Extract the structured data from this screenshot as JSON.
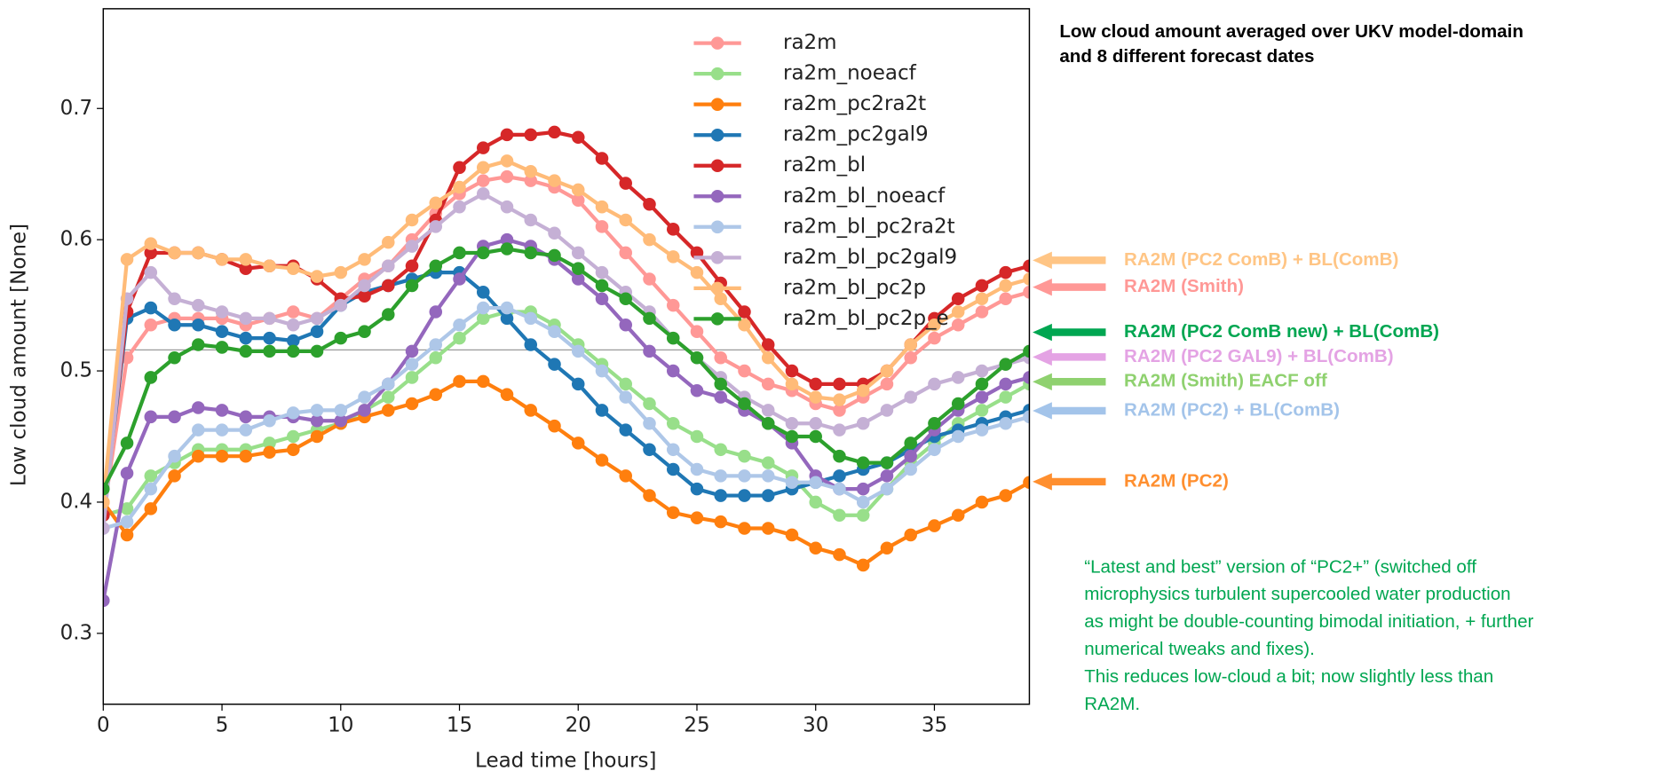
{
  "chart_data": {
    "type": "line",
    "title_lines": [
      "Low cloud amount averaged over UKV model-domain",
      "and 8 different forecast dates"
    ],
    "x_label": "Lead time [hours]",
    "y_label": "Low cloud amount [None]",
    "x": [
      0,
      1,
      2,
      3,
      4,
      5,
      6,
      7,
      8,
      9,
      10,
      11,
      12,
      13,
      14,
      15,
      16,
      17,
      18,
      19,
      20,
      21,
      22,
      23,
      24,
      25,
      26,
      27,
      28,
      29,
      30,
      31,
      32,
      33,
      34,
      35,
      36,
      37,
      38,
      39
    ],
    "xlim": [
      0,
      39
    ],
    "xticks": [
      0,
      5,
      10,
      15,
      20,
      25,
      30,
      35
    ],
    "ylim": [
      0.246,
      0.776
    ],
    "yticks": [
      0.3,
      0.4,
      0.5,
      0.6,
      0.7
    ],
    "reference_line": 0.516,
    "legend_position": "upper center",
    "series": [
      {
        "name": "ra2m",
        "color": "#ff9896",
        "values": [
          0.39,
          0.51,
          0.535,
          0.54,
          0.54,
          0.54,
          0.535,
          0.54,
          0.545,
          0.54,
          0.555,
          0.57,
          0.58,
          0.6,
          0.62,
          0.635,
          0.645,
          0.648,
          0.645,
          0.64,
          0.63,
          0.61,
          0.59,
          0.57,
          0.55,
          0.53,
          0.51,
          0.5,
          0.49,
          0.485,
          0.475,
          0.47,
          0.48,
          0.49,
          0.51,
          0.525,
          0.535,
          0.545,
          0.555,
          0.56
        ]
      },
      {
        "name": "ra2m_noeacf",
        "color": "#98df8a",
        "values": [
          0.39,
          0.395,
          0.42,
          0.43,
          0.44,
          0.44,
          0.44,
          0.445,
          0.45,
          0.455,
          0.46,
          0.47,
          0.48,
          0.495,
          0.51,
          0.525,
          0.54,
          0.545,
          0.545,
          0.535,
          0.52,
          0.505,
          0.49,
          0.475,
          0.46,
          0.45,
          0.44,
          0.435,
          0.43,
          0.42,
          0.4,
          0.39,
          0.39,
          0.41,
          0.43,
          0.445,
          0.46,
          0.47,
          0.48,
          0.49
        ]
      },
      {
        "name": "ra2m_pc2ra2t",
        "color": "#ff7f0e",
        "values": [
          0.4,
          0.375,
          0.395,
          0.42,
          0.435,
          0.435,
          0.435,
          0.438,
          0.44,
          0.45,
          0.46,
          0.465,
          0.47,
          0.475,
          0.482,
          0.492,
          0.492,
          0.482,
          0.47,
          0.458,
          0.445,
          0.432,
          0.42,
          0.405,
          0.392,
          0.388,
          0.385,
          0.38,
          0.38,
          0.375,
          0.365,
          0.36,
          0.352,
          0.365,
          0.375,
          0.382,
          0.39,
          0.4,
          0.405,
          0.415
        ]
      },
      {
        "name": "ra2m_pc2gal9",
        "color": "#1f77b4",
        "values": [
          0.39,
          0.54,
          0.548,
          0.535,
          0.535,
          0.53,
          0.525,
          0.525,
          0.523,
          0.53,
          0.55,
          0.56,
          0.565,
          0.57,
          0.575,
          0.575,
          0.56,
          0.54,
          0.52,
          0.505,
          0.49,
          0.47,
          0.455,
          0.44,
          0.425,
          0.41,
          0.405,
          0.405,
          0.405,
          0.41,
          0.415,
          0.42,
          0.425,
          0.43,
          0.44,
          0.45,
          0.455,
          0.46,
          0.465,
          0.47
        ]
      },
      {
        "name": "ra2m_bl",
        "color": "#d62728",
        "values": [
          0.39,
          0.545,
          0.59,
          0.59,
          0.59,
          0.585,
          0.578,
          0.58,
          0.58,
          0.57,
          0.555,
          0.557,
          0.565,
          0.58,
          0.615,
          0.655,
          0.67,
          0.68,
          0.68,
          0.682,
          0.678,
          0.662,
          0.643,
          0.627,
          0.608,
          0.59,
          0.567,
          0.545,
          0.52,
          0.5,
          0.49,
          0.49,
          0.49,
          0.5,
          0.52,
          0.54,
          0.555,
          0.565,
          0.575,
          0.58
        ]
      },
      {
        "name": "ra2m_bl_noeacf",
        "color": "#9467bd",
        "values": [
          0.325,
          0.422,
          0.465,
          0.465,
          0.472,
          0.47,
          0.465,
          0.465,
          0.465,
          0.462,
          0.462,
          0.47,
          0.49,
          0.515,
          0.545,
          0.57,
          0.595,
          0.6,
          0.595,
          0.585,
          0.57,
          0.555,
          0.535,
          0.515,
          0.5,
          0.485,
          0.48,
          0.47,
          0.46,
          0.445,
          0.42,
          0.41,
          0.41,
          0.42,
          0.435,
          0.455,
          0.47,
          0.48,
          0.49,
          0.495
        ]
      },
      {
        "name": "ra2m_bl_pc2ra2t",
        "color": "#aec7e8",
        "values": [
          0.38,
          0.385,
          0.41,
          0.435,
          0.455,
          0.455,
          0.455,
          0.462,
          0.468,
          0.47,
          0.47,
          0.48,
          0.49,
          0.505,
          0.52,
          0.535,
          0.548,
          0.548,
          0.54,
          0.53,
          0.515,
          0.5,
          0.48,
          0.46,
          0.44,
          0.425,
          0.42,
          0.42,
          0.42,
          0.415,
          0.415,
          0.41,
          0.4,
          0.41,
          0.425,
          0.44,
          0.45,
          0.455,
          0.46,
          0.465
        ]
      },
      {
        "name": "ra2m_bl_pc2gal9",
        "color": "#c5b0d5",
        "values": [
          0.38,
          0.555,
          0.575,
          0.555,
          0.55,
          0.545,
          0.54,
          0.54,
          0.535,
          0.54,
          0.55,
          0.565,
          0.58,
          0.595,
          0.61,
          0.625,
          0.635,
          0.625,
          0.615,
          0.605,
          0.59,
          0.575,
          0.56,
          0.545,
          0.525,
          0.51,
          0.495,
          0.48,
          0.47,
          0.46,
          0.46,
          0.455,
          0.46,
          0.47,
          0.48,
          0.49,
          0.495,
          0.5,
          0.505,
          0.51
        ]
      },
      {
        "name": "ra2m_bl_pc2p",
        "color": "#ffbb78",
        "values": [
          0.4,
          0.585,
          0.597,
          0.59,
          0.59,
          0.585,
          0.585,
          0.58,
          0.578,
          0.572,
          0.575,
          0.585,
          0.598,
          0.615,
          0.628,
          0.64,
          0.655,
          0.66,
          0.652,
          0.645,
          0.638,
          0.625,
          0.615,
          0.6,
          0.587,
          0.575,
          0.555,
          0.535,
          0.51,
          0.49,
          0.48,
          0.478,
          0.485,
          0.5,
          0.52,
          0.535,
          0.545,
          0.555,
          0.565,
          0.57
        ]
      },
      {
        "name": "ra2m_bl_pc2p_e",
        "color": "#2ca02c",
        "values": [
          0.41,
          0.445,
          0.495,
          0.51,
          0.52,
          0.518,
          0.515,
          0.515,
          0.515,
          0.515,
          0.525,
          0.53,
          0.543,
          0.565,
          0.58,
          0.59,
          0.59,
          0.593,
          0.59,
          0.588,
          0.578,
          0.565,
          0.555,
          0.54,
          0.525,
          0.51,
          0.49,
          0.475,
          0.46,
          0.45,
          0.45,
          0.435,
          0.43,
          0.43,
          0.445,
          0.46,
          0.475,
          0.49,
          0.505,
          0.515
        ]
      }
    ],
    "annotations": [
      {
        "text": "RA2M (PC2 ComB) + BL(ComB)",
        "color": "#ffc585"
      },
      {
        "text": "RA2M (Smith)",
        "color": "#ff9896"
      },
      {
        "text": "RA2M (PC2 ComB new) + BL(ComB)",
        "color": "#00a651"
      },
      {
        "text": "RA2M (PC2 GAL9) + BL(ComB)",
        "color": "#e4a3e4"
      },
      {
        "text": "RA2M (Smith) EACF off",
        "color": "#8fd16f"
      },
      {
        "text": "RA2M (PC2) + BL(ComB)",
        "color": "#a3c4ea"
      },
      {
        "text": "RA2M (PC2)",
        "color": "#ff8f2f"
      }
    ],
    "note_color": "#00a651",
    "note_lines": [
      "“Latest and best” version of “PC2+” (switched off",
      "microphysics turbulent supercooled water production",
      "as might be double-counting bimodal initiation, + further",
      "numerical tweaks and fixes).",
      "This reduces low-cloud a bit; now slightly less than",
      "RA2M."
    ]
  }
}
